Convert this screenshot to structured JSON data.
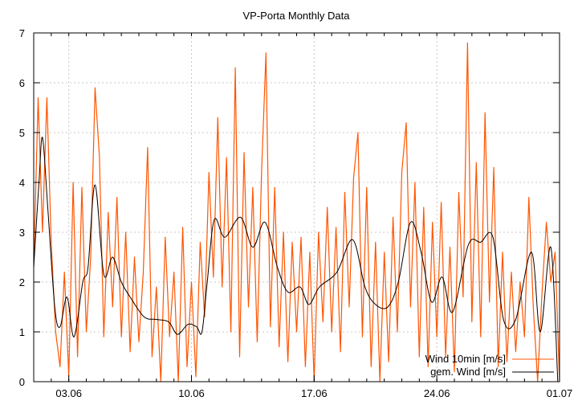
{
  "chart_data": {
    "type": "line",
    "title": "VP-Porta Monthly Data",
    "xlabel": "",
    "ylabel": "",
    "x_unit": "days since 01.06",
    "xlim": [
      0,
      30
    ],
    "ylim": [
      0,
      7
    ],
    "yticks": [
      0,
      1,
      2,
      3,
      4,
      5,
      6,
      7
    ],
    "xticks": [
      {
        "value": 2,
        "label": "03.06"
      },
      {
        "value": 9,
        "label": "10.06"
      },
      {
        "value": 16,
        "label": "17.06"
      },
      {
        "value": 23,
        "label": "24.06"
      },
      {
        "value": 30,
        "label": "01.07"
      }
    ],
    "grid": true,
    "legend_position": "bottom-right",
    "series": [
      {
        "name": "Wind 10min [m/s]",
        "color": "#ff5500",
        "x_step": 0.25,
        "values": [
          2.3,
          5.7,
          3.0,
          5.7,
          2.8,
          1.0,
          0.3,
          2.2,
          0.1,
          4.0,
          0.5,
          3.9,
          1.0,
          2.5,
          5.9,
          4.5,
          0.9,
          3.4,
          1.5,
          3.7,
          0.9,
          3.0,
          0.6,
          2.5,
          0.8,
          2.2,
          4.7,
          0.5,
          1.9,
          0.0,
          2.9,
          0.9,
          2.2,
          0.0,
          3.1,
          0.3,
          2.0,
          0.1,
          2.8,
          1.3,
          4.2,
          2.1,
          5.3,
          1.9,
          4.5,
          1.0,
          6.3,
          0.5,
          4.6,
          1.5,
          3.9,
          0.8,
          4.2,
          6.6,
          1.1,
          3.9,
          0.7,
          3.0,
          0.4,
          2.8,
          1.0,
          2.9,
          0.3,
          2.6,
          0.0,
          3.0,
          1.2,
          3.5,
          1.0,
          3.1,
          0.6,
          3.8,
          1.5,
          4.1,
          5.0,
          0.9,
          3.9,
          0.3,
          2.8,
          0.0,
          2.6,
          0.4,
          3.3,
          1.0,
          4.2,
          5.2,
          1.5,
          4.0,
          0.5,
          3.5,
          0.3,
          3.2,
          0.9,
          3.6,
          0.5,
          2.7,
          0.2,
          3.8,
          1.7,
          6.8,
          1.2,
          4.4,
          0.9,
          5.4,
          1.6,
          4.3,
          0.3,
          2.6,
          0.4,
          2.2,
          0.6,
          2.0,
          0.9,
          3.7,
          1.5,
          0.0,
          1.8,
          3.2,
          2.0,
          2.6,
          0.0
        ]
      },
      {
        "name": "gem. Wind [m/s]",
        "color": "#000000",
        "points": [
          [
            0,
            2.3
          ],
          [
            0.3,
            4.0
          ],
          [
            0.5,
            4.9
          ],
          [
            0.8,
            3.5
          ],
          [
            1.2,
            1.5
          ],
          [
            1.5,
            1.1
          ],
          [
            1.9,
            1.7
          ],
          [
            2.3,
            0.9
          ],
          [
            2.8,
            2.0
          ],
          [
            3.1,
            2.3
          ],
          [
            3.5,
            3.95
          ],
          [
            4.0,
            2.15
          ],
          [
            4.5,
            2.5
          ],
          [
            5.0,
            2.0
          ],
          [
            5.5,
            1.7
          ],
          [
            6.3,
            1.3
          ],
          [
            7.0,
            1.25
          ],
          [
            7.7,
            1.2
          ],
          [
            8.2,
            0.95
          ],
          [
            8.8,
            1.15
          ],
          [
            9.3,
            1.1
          ],
          [
            9.6,
            1.0
          ],
          [
            9.9,
            2.0
          ],
          [
            10.3,
            3.25
          ],
          [
            10.9,
            2.9
          ],
          [
            11.8,
            3.3
          ],
          [
            12.5,
            2.7
          ],
          [
            13.2,
            3.2
          ],
          [
            13.9,
            2.3
          ],
          [
            14.5,
            1.8
          ],
          [
            15.2,
            1.9
          ],
          [
            15.7,
            1.55
          ],
          [
            16.3,
            1.9
          ],
          [
            17.3,
            2.2
          ],
          [
            18.2,
            2.85
          ],
          [
            18.9,
            1.9
          ],
          [
            19.5,
            1.55
          ],
          [
            20.2,
            1.5
          ],
          [
            20.8,
            2.0
          ],
          [
            21.5,
            3.2
          ],
          [
            22.1,
            2.6
          ],
          [
            22.7,
            1.6
          ],
          [
            23.3,
            2.1
          ],
          [
            23.9,
            1.4
          ],
          [
            24.8,
            2.75
          ],
          [
            25.5,
            2.8
          ],
          [
            26.2,
            2.9
          ],
          [
            26.8,
            1.25
          ],
          [
            27.5,
            1.25
          ],
          [
            28.4,
            2.6
          ],
          [
            28.9,
            1.0
          ],
          [
            29.5,
            2.7
          ],
          [
            29.9,
            0.0
          ]
        ]
      }
    ]
  }
}
